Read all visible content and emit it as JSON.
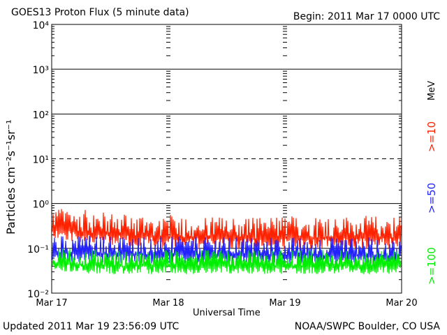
{
  "header": {
    "title": "GOES13 Proton Flux (5 minute data)",
    "begin": "Begin: 2011 Mar 17 0000 UTC"
  },
  "footer": {
    "updated": "Updated 2011 Mar 19 23:56:09 UTC",
    "source": "NOAA/SWPC Boulder, CO USA"
  },
  "chart_data": {
    "type": "line",
    "title": "GOES13 Proton Flux (5 minute data)",
    "xlabel": "Universal Time",
    "ylabel": "Particles cm⁻²s⁻¹sr⁻¹",
    "y_scale": "log",
    "ylim": [
      0.01,
      10000
    ],
    "xlim": [
      "2011-03-17",
      "2011-03-20"
    ],
    "x_ticks": [
      "Mar 17",
      "Mar 18",
      "Mar 19",
      "Mar 20"
    ],
    "y_ticks": [
      "10⁻²",
      "10⁻¹",
      "10⁰",
      "10¹",
      "10²",
      "10³",
      "10⁴"
    ],
    "legend_unit": "MeV",
    "grid": true,
    "colors": {
      ">=10": "#ff2200",
      ">=50": "#2222ff",
      ">=100": "#00ee00"
    },
    "series": [
      {
        "name": ">=10",
        "color": "#ff2200",
        "x": [
          "2011-03-17",
          "2011-03-17 12:00",
          "2011-03-18",
          "2011-03-18 12:00",
          "2011-03-19",
          "2011-03-19 12:00",
          "2011-03-20"
        ],
        "values": [
          0.28,
          0.2,
          0.18,
          0.16,
          0.17,
          0.17,
          0.17
        ]
      },
      {
        "name": ">=50",
        "color": "#2222ff",
        "x": [
          "2011-03-17",
          "2011-03-17 12:00",
          "2011-03-18",
          "2011-03-18 12:00",
          "2011-03-19",
          "2011-03-19 12:00",
          "2011-03-20"
        ],
        "values": [
          0.08,
          0.075,
          0.072,
          0.07,
          0.07,
          0.07,
          0.07
        ]
      },
      {
        "name": ">=100",
        "color": "#00ee00",
        "x": [
          "2011-03-17",
          "2011-03-17 12:00",
          "2011-03-18",
          "2011-03-18 12:00",
          "2011-03-19",
          "2011-03-19 12:00",
          "2011-03-20"
        ],
        "values": [
          0.045,
          0.04,
          0.04,
          0.04,
          0.04,
          0.04,
          0.04
        ]
      }
    ]
  }
}
